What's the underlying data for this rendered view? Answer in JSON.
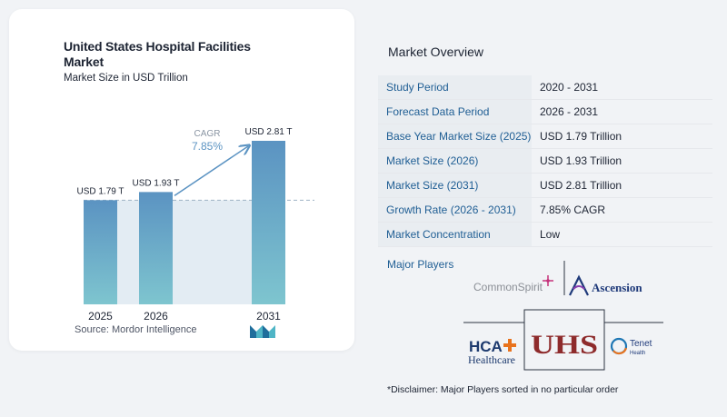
{
  "chart_data": {
    "type": "bar",
    "title": "United States Hospital Facilities Market",
    "subtitle": "Market Size in USD Trillion",
    "categories": [
      "2025",
      "2026",
      "2031"
    ],
    "values": [
      1.79,
      1.93,
      2.81
    ],
    "value_labels": [
      "USD 1.79 T",
      "USD 1.93 T",
      "USD 2.81 T"
    ],
    "cagr_label": "CAGR",
    "cagr_value": "7.85%",
    "ylim": [
      0,
      2.81
    ],
    "bar_colors": {
      "top": "#5b93c2",
      "bottom": "#7ec5cf"
    },
    "grid": false
  },
  "source": "Source: Mordor Intelligence",
  "overview": {
    "title": "Market Overview",
    "rows": [
      {
        "label": "Study Period",
        "value": "2020 - 2031"
      },
      {
        "label": "Forecast Data Period",
        "value": "2026 - 2031"
      },
      {
        "label": "Base Year Market Size (2025)",
        "value": "USD 1.79 Trillion"
      },
      {
        "label": "Market Size (2026)",
        "value": "USD 1.93 Trillion"
      },
      {
        "label": "Market Size (2031)",
        "value": "USD 2.81 Trillion"
      },
      {
        "label": "Growth Rate (2026 - 2031)",
        "value": "7.85% CAGR"
      },
      {
        "label": "Market Concentration",
        "value": "Low"
      }
    ]
  },
  "players": {
    "title": "Major Players",
    "logos": {
      "commonspirit": "CommonSpirit",
      "ascension": "Ascension",
      "hca_line1": "HCA",
      "hca_line2": "Healthcare",
      "uhs": "UHS",
      "tenet_line1": "Tenet",
      "tenet_line2": "Health"
    }
  },
  "disclaimer": "*Disclaimer: Major Players sorted in no particular order"
}
